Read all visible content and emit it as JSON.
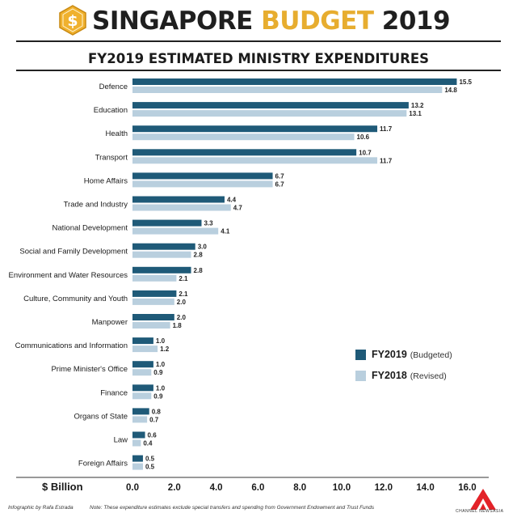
{
  "header": {
    "title_part1": "SINGAPORE",
    "title_part2": "BUDGET",
    "title_part3": "2019",
    "logo_symbol": "$",
    "subtitle": "FY2019 ESTIMATED MINISTRY EXPENDITURES"
  },
  "colors": {
    "fy2019": "#1f5a78",
    "fy2018": "#b9cfde",
    "brand_gold": "#e7ad2f",
    "hex_gold": "#f0b12e"
  },
  "legend": {
    "items": [
      {
        "label": "FY2019",
        "note": "(Budgeted)"
      },
      {
        "label": "FY2018",
        "note": "(Revised)"
      }
    ]
  },
  "footer": {
    "credit": "Infographic by Rafa Estrada",
    "note": "Note: These expenditure estimates exclude special transfers and spending from Government Endowment and Trust Funds",
    "brand": "CHANNEL NEWSASIA"
  },
  "chart_data": {
    "type": "bar",
    "orientation": "horizontal",
    "title": "FY2019 ESTIMATED MINISTRY EXPENDITURES",
    "xlabel": "$ Billion",
    "ylabel": "",
    "xlim": [
      0,
      16.5
    ],
    "xticks": [
      "0.0",
      "2.0",
      "4.0",
      "6.0",
      "8.0",
      "10.0",
      "12.0",
      "14.0",
      "16.0"
    ],
    "categories": [
      "Defence",
      "Education",
      "Health",
      "Transport",
      "Home Affairs",
      "Trade and Industry",
      "National Development",
      "Social and Family Development",
      "Environment and Water Resources",
      "Culture, Community and Youth",
      "Manpower",
      "Communications and Information",
      "Prime Minister's Office",
      "Finance",
      "Organs of State",
      "Law",
      "Foreign Affairs"
    ],
    "series": [
      {
        "name": "FY2019 (Budgeted)",
        "values": [
          15.5,
          13.2,
          11.7,
          10.7,
          6.7,
          4.4,
          3.3,
          3.0,
          2.8,
          2.1,
          2.0,
          1.0,
          1.0,
          1.0,
          0.8,
          0.6,
          0.5
        ]
      },
      {
        "name": "FY2018 (Revised)",
        "values": [
          14.8,
          13.1,
          10.6,
          11.7,
          6.7,
          4.7,
          4.1,
          2.8,
          2.1,
          2.0,
          1.8,
          1.2,
          0.9,
          0.9,
          0.7,
          0.4,
          0.5
        ]
      }
    ],
    "value_labels": [
      [
        "15.5",
        "13.2",
        "11.7",
        "10.7",
        "6.7",
        "4.4",
        "3.3",
        "3.0",
        "2.8",
        "2.1",
        "2.0",
        "1.0",
        "1.0",
        "1.0",
        "0.8",
        "0.6",
        "0.5"
      ],
      [
        "14.8",
        "13.1",
        "10.6",
        "11.7",
        "6.7",
        "4.7",
        "4.1",
        "2.8",
        "2.1",
        "2.0",
        "1.8",
        "1.2",
        "0.9",
        "0.9",
        "0.7",
        "0.4",
        "0.5"
      ]
    ],
    "legend_position": "lower-right",
    "grid": false
  }
}
